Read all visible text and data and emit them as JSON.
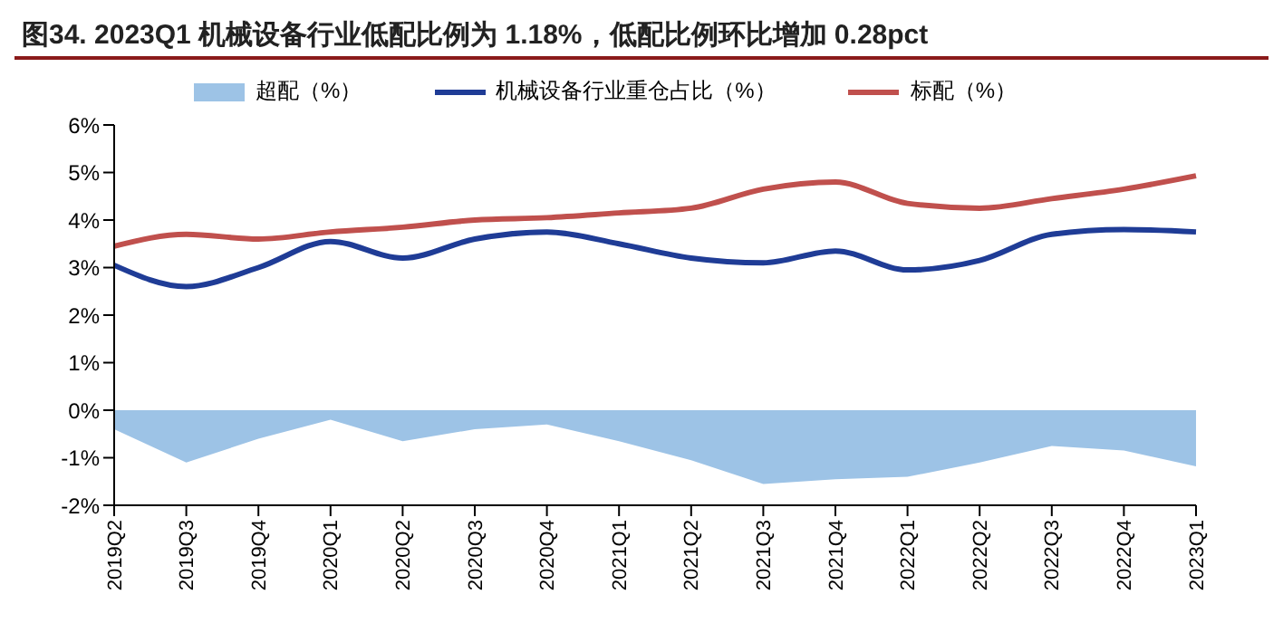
{
  "chart_data": {
    "type": "line",
    "title": "图34. 2023Q1 机械设备行业低配比例为 1.18%，低配比例环比增加 0.28pct",
    "categories": [
      "2019Q2",
      "2019Q3",
      "2019Q4",
      "2020Q1",
      "2020Q2",
      "2020Q3",
      "2020Q4",
      "2021Q1",
      "2021Q2",
      "2021Q3",
      "2021Q4",
      "2022Q1",
      "2022Q2",
      "2022Q3",
      "2022Q4",
      "2023Q1"
    ],
    "series": [
      {
        "name": "超配（%）",
        "type": "area",
        "color": "#9dc3e6",
        "values": [
          -0.4,
          -1.1,
          -0.6,
          -0.2,
          -0.65,
          -0.4,
          -0.3,
          -0.65,
          -1.05,
          -1.55,
          -1.45,
          -1.4,
          -1.1,
          -0.75,
          -0.85,
          -1.18
        ]
      },
      {
        "name": "机械设备行业重仓占比（%）",
        "color": "#1f3c96",
        "values": [
          3.05,
          2.6,
          3.0,
          3.55,
          3.2,
          3.6,
          3.75,
          3.5,
          3.2,
          3.1,
          3.35,
          2.95,
          3.15,
          3.7,
          3.8,
          3.75
        ]
      },
      {
        "name": "标配（%）",
        "color": "#c0504d",
        "values": [
          3.45,
          3.7,
          3.6,
          3.75,
          3.85,
          4.0,
          4.05,
          4.15,
          4.25,
          4.65,
          4.8,
          4.35,
          4.25,
          4.45,
          4.65,
          4.93
        ]
      }
    ],
    "ylim": [
      -2,
      6
    ],
    "yticks": [
      {
        "value": -2,
        "label": "-2%"
      },
      {
        "value": -1,
        "label": "-1%"
      },
      {
        "value": 0,
        "label": "0%"
      },
      {
        "value": 1,
        "label": "1%"
      },
      {
        "value": 2,
        "label": "2%"
      },
      {
        "value": 3,
        "label": "3%"
      },
      {
        "value": 4,
        "label": "4%"
      },
      {
        "value": 5,
        "label": "5%"
      },
      {
        "value": 6,
        "label": "6%"
      }
    ],
    "grid": false,
    "legend": "top",
    "marker": "none",
    "line_style": "solid"
  }
}
